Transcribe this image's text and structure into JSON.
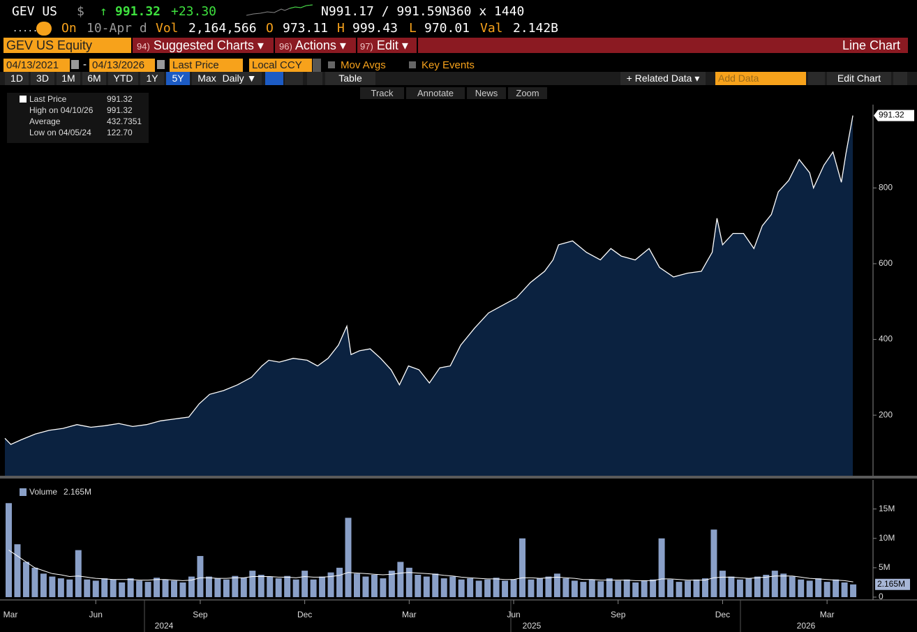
{
  "header": {
    "ticker": "GEV US",
    "currency": "$",
    "arrow": "↑",
    "price": "991.32",
    "change": "+23.30",
    "bid_ask": "N991.17 / 991.59N",
    "size": "360 x 1440",
    "dots": ".....",
    "on_label": "On",
    "date": "10-Apr d",
    "vol_label": "Vol",
    "vol": "2,164,566",
    "open_label": "O",
    "open": "973.11",
    "high_label": "H",
    "high": "999.43",
    "low_label": "L",
    "low": "970.01",
    "val_label": "Val",
    "val": "2.142B"
  },
  "toolbar": {
    "security": "GEV US Equity",
    "menus": [
      {
        "num": "94)",
        "label": "Suggested Charts ▾"
      },
      {
        "num": "96)",
        "label": "Actions ▾"
      },
      {
        "num": "97)",
        "label": "Edit ▾"
      }
    ],
    "chart_type": "Line Chart"
  },
  "controls": {
    "start": "04/13/2021",
    "dash": "-",
    "end": "04/13/2026",
    "field": "Last Price",
    "currency": "Local CCY",
    "mov_avgs": "Mov Avgs",
    "key_events": "Key Events",
    "periods": [
      "1D",
      "3D",
      "1M",
      "6M",
      "YTD",
      "1Y",
      "5Y",
      "Max"
    ],
    "active_period": 6,
    "frequency": "Daily ▼",
    "table": "Table",
    "related": "+ Related Data ▾",
    "add_data": "Add Data",
    "edit_chart": "Edit Chart",
    "chart_tools": [
      "Track",
      "Annotate",
      "News",
      "Zoom"
    ]
  },
  "chart_data": [
    {
      "type": "area",
      "x": [
        3.39,
        3.56,
        3.86,
        4.26,
        4.66,
        5.06,
        5.46,
        5.86,
        6.26,
        6.66,
        7.06,
        7.46,
        7.86,
        8.26,
        8.67,
        8.97,
        9.27,
        9.67,
        10.07,
        10.47,
        10.77,
        10.97,
        11.27,
        11.67,
        12.07,
        12.37,
        12.67,
        12.97,
        13.21,
        13.33,
        13.57,
        13.88,
        14.18,
        14.48,
        14.72,
        14.98,
        15.28,
        15.58,
        15.88,
        16.18,
        16.48,
        16.88,
        17.28,
        17.68,
        18.08,
        18.48,
        18.89,
        19.13,
        19.29,
        19.69,
        20.09,
        20.49,
        20.79,
        21.09,
        21.49,
        21.89,
        22.19,
        22.59,
        22.99,
        23.39,
        23.7,
        23.84,
        24.0,
        24.3,
        24.6,
        24.9,
        25.14,
        25.4,
        25.6,
        25.9,
        26.2,
        26.5,
        26.61,
        26.91,
        27.17,
        27.41,
        27.54,
        27.74
      ],
      "series": [
        {
          "name": "Last Price",
          "color": "#ffffff",
          "fill": "#0b2240",
          "values": [
            139,
            122.7,
            135,
            150,
            160,
            165,
            175,
            168,
            172,
            178,
            170,
            175,
            185,
            190,
            195,
            230,
            255,
            265,
            280,
            300,
            330,
            345,
            340,
            350,
            345,
            330,
            350,
            385,
            435,
            360,
            370,
            375,
            350,
            320,
            280,
            330,
            320,
            285,
            325,
            330,
            385,
            430,
            470,
            490,
            510,
            550,
            580,
            610,
            650,
            660,
            630,
            610,
            640,
            620,
            610,
            640,
            590,
            565,
            575,
            580,
            630,
            720,
            650,
            680,
            680,
            640,
            700,
            730,
            790,
            820,
            875,
            840,
            800,
            860,
            895,
            815,
            890,
            991.32
          ]
        }
      ],
      "stats": [
        {
          "label": "High on 04/10/26",
          "value": "991.32"
        },
        {
          "label": "Average",
          "value": "432.7351"
        },
        {
          "label": "Low on 04/05/24",
          "value": "122.70"
        }
      ],
      "xlim": [
        3.39,
        28.3
      ],
      "ylim": [
        40,
        1020
      ],
      "yticks": [
        200,
        400,
        600,
        800
      ]
    },
    {
      "type": "bar",
      "x": [
        3.5,
        3.75,
        4,
        4.25,
        4.5,
        4.75,
        5,
        5.25,
        5.5,
        5.75,
        6,
        6.25,
        6.5,
        6.75,
        7,
        7.25,
        7.5,
        7.75,
        8,
        8.25,
        8.5,
        8.75,
        9,
        9.25,
        9.5,
        9.75,
        10,
        10.25,
        10.5,
        10.75,
        11,
        11.25,
        11.5,
        11.75,
        12,
        12.25,
        12.5,
        12.75,
        13,
        13.25,
        13.5,
        13.75,
        14,
        14.25,
        14.5,
        14.75,
        15,
        15.25,
        15.5,
        15.75,
        16,
        16.25,
        16.5,
        16.75,
        17,
        17.25,
        17.5,
        17.75,
        18,
        18.25,
        18.5,
        18.75,
        19,
        19.25,
        19.5,
        19.75,
        20,
        20.25,
        20.5,
        20.75,
        21,
        21.25,
        21.5,
        21.75,
        22,
        22.25,
        22.5,
        22.75,
        23,
        23.25,
        23.5,
        23.75,
        24,
        24.25,
        24.5,
        24.75,
        25,
        25.25,
        25.5,
        25.75,
        26,
        26.25,
        26.5,
        26.75,
        27,
        27.25,
        27.5,
        27.75
      ],
      "series": [
        {
          "name": "Volume",
          "color": "#8aa0c8",
          "values": [
            16,
            9,
            6,
            5,
            4,
            3.5,
            3.2,
            3,
            8,
            3,
            2.8,
            3.2,
            3,
            2.5,
            3.2,
            2.8,
            2.6,
            3.3,
            3,
            2.8,
            2.5,
            3.5,
            7,
            3.5,
            3.2,
            3,
            3.6,
            3.3,
            4.5,
            3.8,
            3.5,
            3.2,
            3.6,
            3,
            4.5,
            3,
            3.5,
            4.2,
            5,
            13.5,
            4,
            3.5,
            3.8,
            3.2,
            4.5,
            6,
            5,
            3.8,
            3.5,
            4,
            3.2,
            3.5,
            3,
            3.2,
            2.8,
            3,
            3.3,
            2.8,
            3,
            10,
            3,
            3.2,
            3.5,
            4,
            3.2,
            2.8,
            2.6,
            3,
            2.7,
            3.2,
            2.8,
            3,
            2.5,
            2.8,
            3,
            10,
            3,
            2.6,
            2.8,
            3,
            3.2,
            11.5,
            4.5,
            3.5,
            3,
            3.2,
            3.5,
            3.8,
            4.5,
            4,
            3.5,
            3,
            2.8,
            3.2,
            2.6,
            3,
            2.5,
            2.165
          ],
          "last_label": "2.165M"
        },
        {
          "color": "#ffffff",
          "values": [
            8,
            7,
            6,
            5,
            4.5,
            4,
            3.8,
            3.5,
            3.6,
            3.4,
            3.2,
            3.1,
            3,
            3,
            3,
            2.9,
            2.9,
            3,
            3,
            2.9,
            2.8,
            2.9,
            3.3,
            3.3,
            3.2,
            3.2,
            3.3,
            3.3,
            3.5,
            3.5,
            3.5,
            3.4,
            3.4,
            3.3,
            3.5,
            3.4,
            3.4,
            3.5,
            3.7,
            4.2,
            4.1,
            4,
            3.9,
            3.8,
            3.9,
            4.1,
            4.2,
            4.1,
            4,
            3.9,
            3.7,
            3.6,
            3.4,
            3.3,
            3.2,
            3.1,
            3.1,
            3,
            3,
            3.3,
            3.3,
            3.2,
            3.3,
            3.4,
            3.3,
            3.2,
            3,
            3,
            2.9,
            2.9,
            2.9,
            2.9,
            2.8,
            2.8,
            2.8,
            3.1,
            3.1,
            3,
            2.9,
            2.9,
            2.9,
            3.3,
            3.4,
            3.4,
            3.3,
            3.2,
            3.3,
            3.4,
            3.6,
            3.6,
            3.6,
            3.4,
            3.2,
            3.1,
            3,
            2.9,
            2.8,
            2.6
          ]
        }
      ],
      "xlim": [
        3.39,
        28.3
      ],
      "ylim": [
        0,
        19
      ],
      "yticks": [
        0,
        {
          "value": 5,
          "label": "5M"
        },
        {
          "value": 10,
          "label": "10M"
        },
        {
          "value": 15,
          "label": "15M"
        }
      ],
      "xticks": [
        {
          "value": 3,
          "label": "Mar"
        },
        {
          "value": 6,
          "label": "Jun"
        },
        {
          "value": 9,
          "label": "Sep"
        },
        {
          "value": 12,
          "label": "Dec"
        },
        {
          "value": 15,
          "label": "Mar"
        },
        {
          "value": 18,
          "label": "Jun"
        },
        {
          "value": 21,
          "label": "Sep"
        },
        {
          "value": 24,
          "label": "Dec"
        },
        {
          "value": 27,
          "label": "Mar"
        }
      ],
      "year_labels": [
        "2024",
        "2025",
        "2026"
      ]
    }
  ]
}
